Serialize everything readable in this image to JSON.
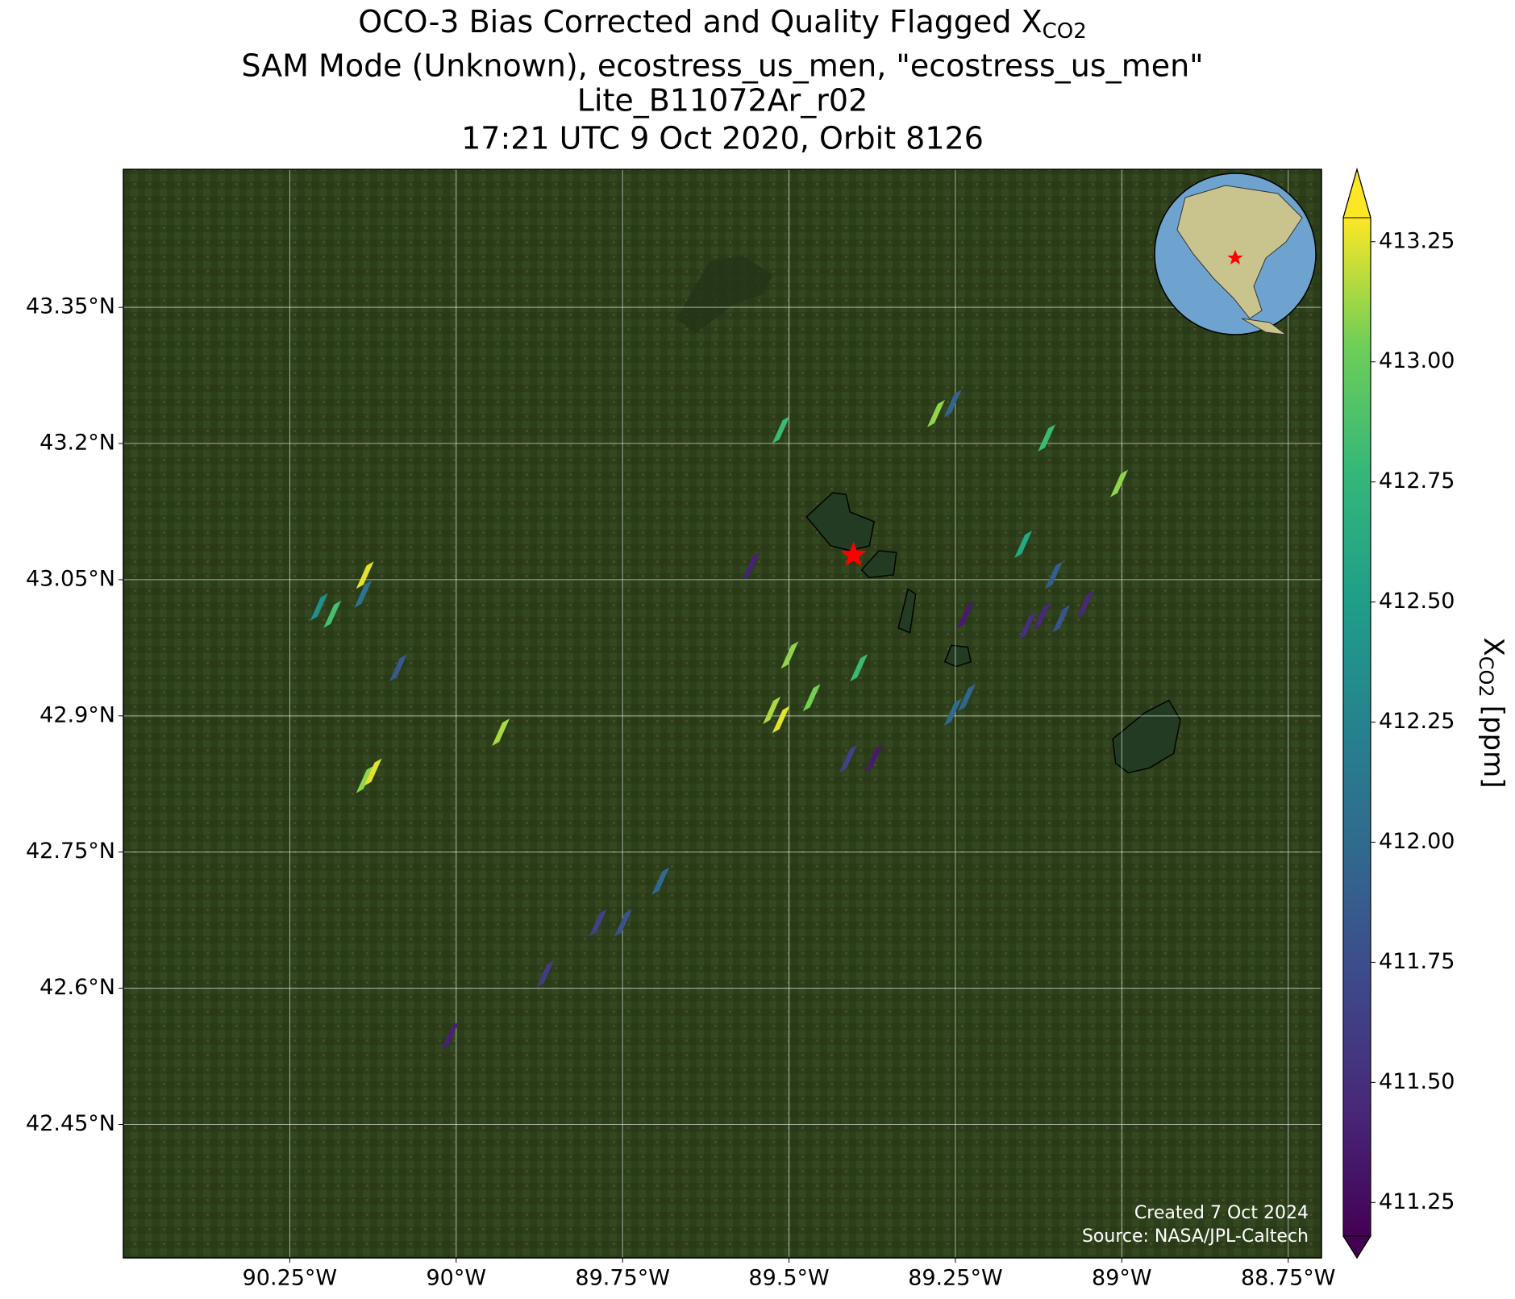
{
  "chart_data": {
    "type": "map",
    "title_lines": [
      "OCO-3 Bias Corrected and Quality Flagged X",
      "SAM Mode (Unknown), ecostress_us_men, \"ecostress_us_men\"",
      "Lite_B11072Ar_r02",
      "17:21 UTC 9 Oct 2020, Orbit 8126"
    ],
    "title_subscript": "CO2",
    "xlim": [
      -90.5,
      -88.7
    ],
    "ylim": [
      42.303,
      43.502
    ],
    "xticks": [
      {
        "value": -90.25,
        "label": "90.25°W"
      },
      {
        "value": -90,
        "label": "90°W"
      },
      {
        "value": -89.75,
        "label": "89.75°W"
      },
      {
        "value": -89.5,
        "label": "89.5°W"
      },
      {
        "value": -89.25,
        "label": "89.25°W"
      },
      {
        "value": -89,
        "label": "89°W"
      },
      {
        "value": -88.75,
        "label": "88.75°W"
      }
    ],
    "yticks": [
      {
        "value": 43.35,
        "label": "43.35°N"
      },
      {
        "value": 43.2,
        "label": "43.2°N"
      },
      {
        "value": 43.05,
        "label": "43.05°N"
      },
      {
        "value": 42.9,
        "label": "42.9°N"
      },
      {
        "value": 42.75,
        "label": "42.75°N"
      },
      {
        "value": 42.6,
        "label": "42.6°N"
      },
      {
        "value": 42.45,
        "label": "42.45°N"
      }
    ],
    "grid": true,
    "colormap": "viridis",
    "clim": [
      411.18,
      413.3
    ],
    "cbar_ticks": [
      411.25,
      {
        "value": 411.5,
        "label": "411.50"
      },
      411.75,
      {
        "value": 412,
        "label": "412.00"
      },
      412.25,
      {
        "value": 412.5,
        "label": "412.50"
      },
      412.75,
      {
        "value": 413,
        "label": "413.00"
      },
      413.25
    ],
    "colorbar_label": "X",
    "colorbar_label_subscript": "CO2",
    "colorbar_unit": "[ppm]",
    "soundings": {
      "lon": [
        -89.512,
        -89.279,
        -89.254,
        -89.113,
        -89.004,
        -89.148,
        -89.102,
        -89.557,
        -90.137,
        -90.14,
        -90.206,
        -90.186,
        -90.087,
        -89.235,
        -89.142,
        -89.12,
        -89.091,
        -89.055,
        -89.499,
        -89.395,
        -89.466,
        -89.526,
        -89.512,
        -89.254,
        -89.233,
        -89.933,
        -90.137,
        -90.125,
        -89.411,
        -89.373,
        -89.693,
        -89.787,
        -89.749,
        -89.866,
        -90.009
      ],
      "lat": [
        43.215,
        43.233,
        43.244,
        43.206,
        43.156,
        43.089,
        43.055,
        43.065,
        43.055,
        43.034,
        43.02,
        43.012,
        42.953,
        43.011,
        42.999,
        43.01,
        43.007,
        43.023,
        42.967,
        42.953,
        42.92,
        42.906,
        42.896,
        42.904,
        42.92,
        42.882,
        42.83,
        42.838,
        42.853,
        42.853,
        42.718,
        42.672,
        42.672,
        42.616,
        42.548
      ],
      "values": [
        412.8,
        413.1,
        411.95,
        412.8,
        413.1,
        412.6,
        411.9,
        411.4,
        413.25,
        412.1,
        412.35,
        412.85,
        411.85,
        411.35,
        411.5,
        411.45,
        411.8,
        411.45,
        413.1,
        412.8,
        413.05,
        413.15,
        413.25,
        412.0,
        411.95,
        413.15,
        413.1,
        413.25,
        411.65,
        411.35,
        412.0,
        411.65,
        411.8,
        411.6,
        411.4
      ]
    },
    "target": {
      "lon": -89.403,
      "lat": 43.077,
      "color": "#ff0000"
    },
    "credits": [
      "Created 7 Oct 2024",
      "Source: NASA/JPL-Caltech"
    ]
  }
}
